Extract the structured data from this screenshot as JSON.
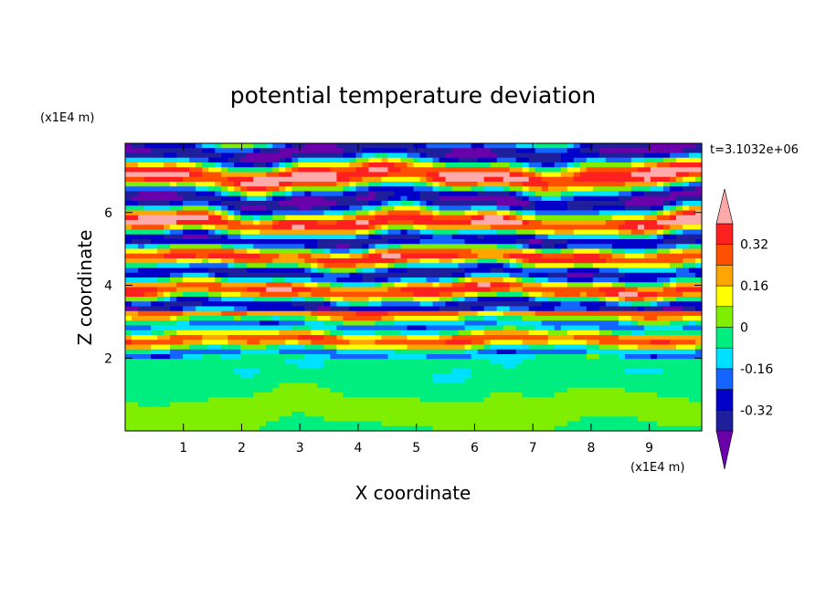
{
  "chart_data": {
    "type": "heatmap",
    "title": "potential temperature deviation",
    "xlabel": "X coordinate",
    "ylabel": "Z coordinate",
    "x_unit": "(x1E4 m)",
    "y_unit": "(x1E4 m)",
    "time_label": "t=3.1032e+06",
    "xlim": [
      0,
      9.9
    ],
    "ylim": [
      0,
      7.9
    ],
    "x_ticks": [
      1,
      2,
      3,
      4,
      5,
      6,
      7,
      8,
      9
    ],
    "y_ticks": [
      2,
      4,
      6
    ],
    "colorbar": {
      "levels": [
        -0.4,
        -0.32,
        -0.24,
        -0.16,
        -0.08,
        0,
        0.08,
        0.16,
        0.24,
        0.32,
        0.4
      ],
      "tick_labels": [
        "0.32",
        "0.16",
        "0",
        "-0.16",
        "-0.32"
      ],
      "tick_values": [
        0.32,
        0.16,
        0,
        -0.16,
        -0.32
      ],
      "colors": [
        "#6a00aa",
        "#1f1f9c",
        "#0000c8",
        "#1464ff",
        "#00e0ff",
        "#00ee80",
        "#80ee00",
        "#ffff00",
        "#ffa500",
        "#ff5000",
        "#ff2020",
        "#ffaaaa"
      ],
      "extend": "both"
    },
    "field": {
      "description_free": true,
      "layers": [
        {
          "z": [
            0.0,
            2.0
          ],
          "base": -0.02,
          "amp": 0.07,
          "wave": 0.9
        },
        {
          "z": [
            2.0,
            3.3
          ],
          "base": 0.05,
          "amp": 0.3,
          "wave": 2.6
        },
        {
          "z": [
            3.3,
            5.6
          ],
          "base": 0.0,
          "amp": 0.42,
          "wave": 2.2
        },
        {
          "z": [
            5.6,
            7.9
          ],
          "base": 0.0,
          "amp": 0.5,
          "wave": 1.5
        }
      ]
    }
  }
}
